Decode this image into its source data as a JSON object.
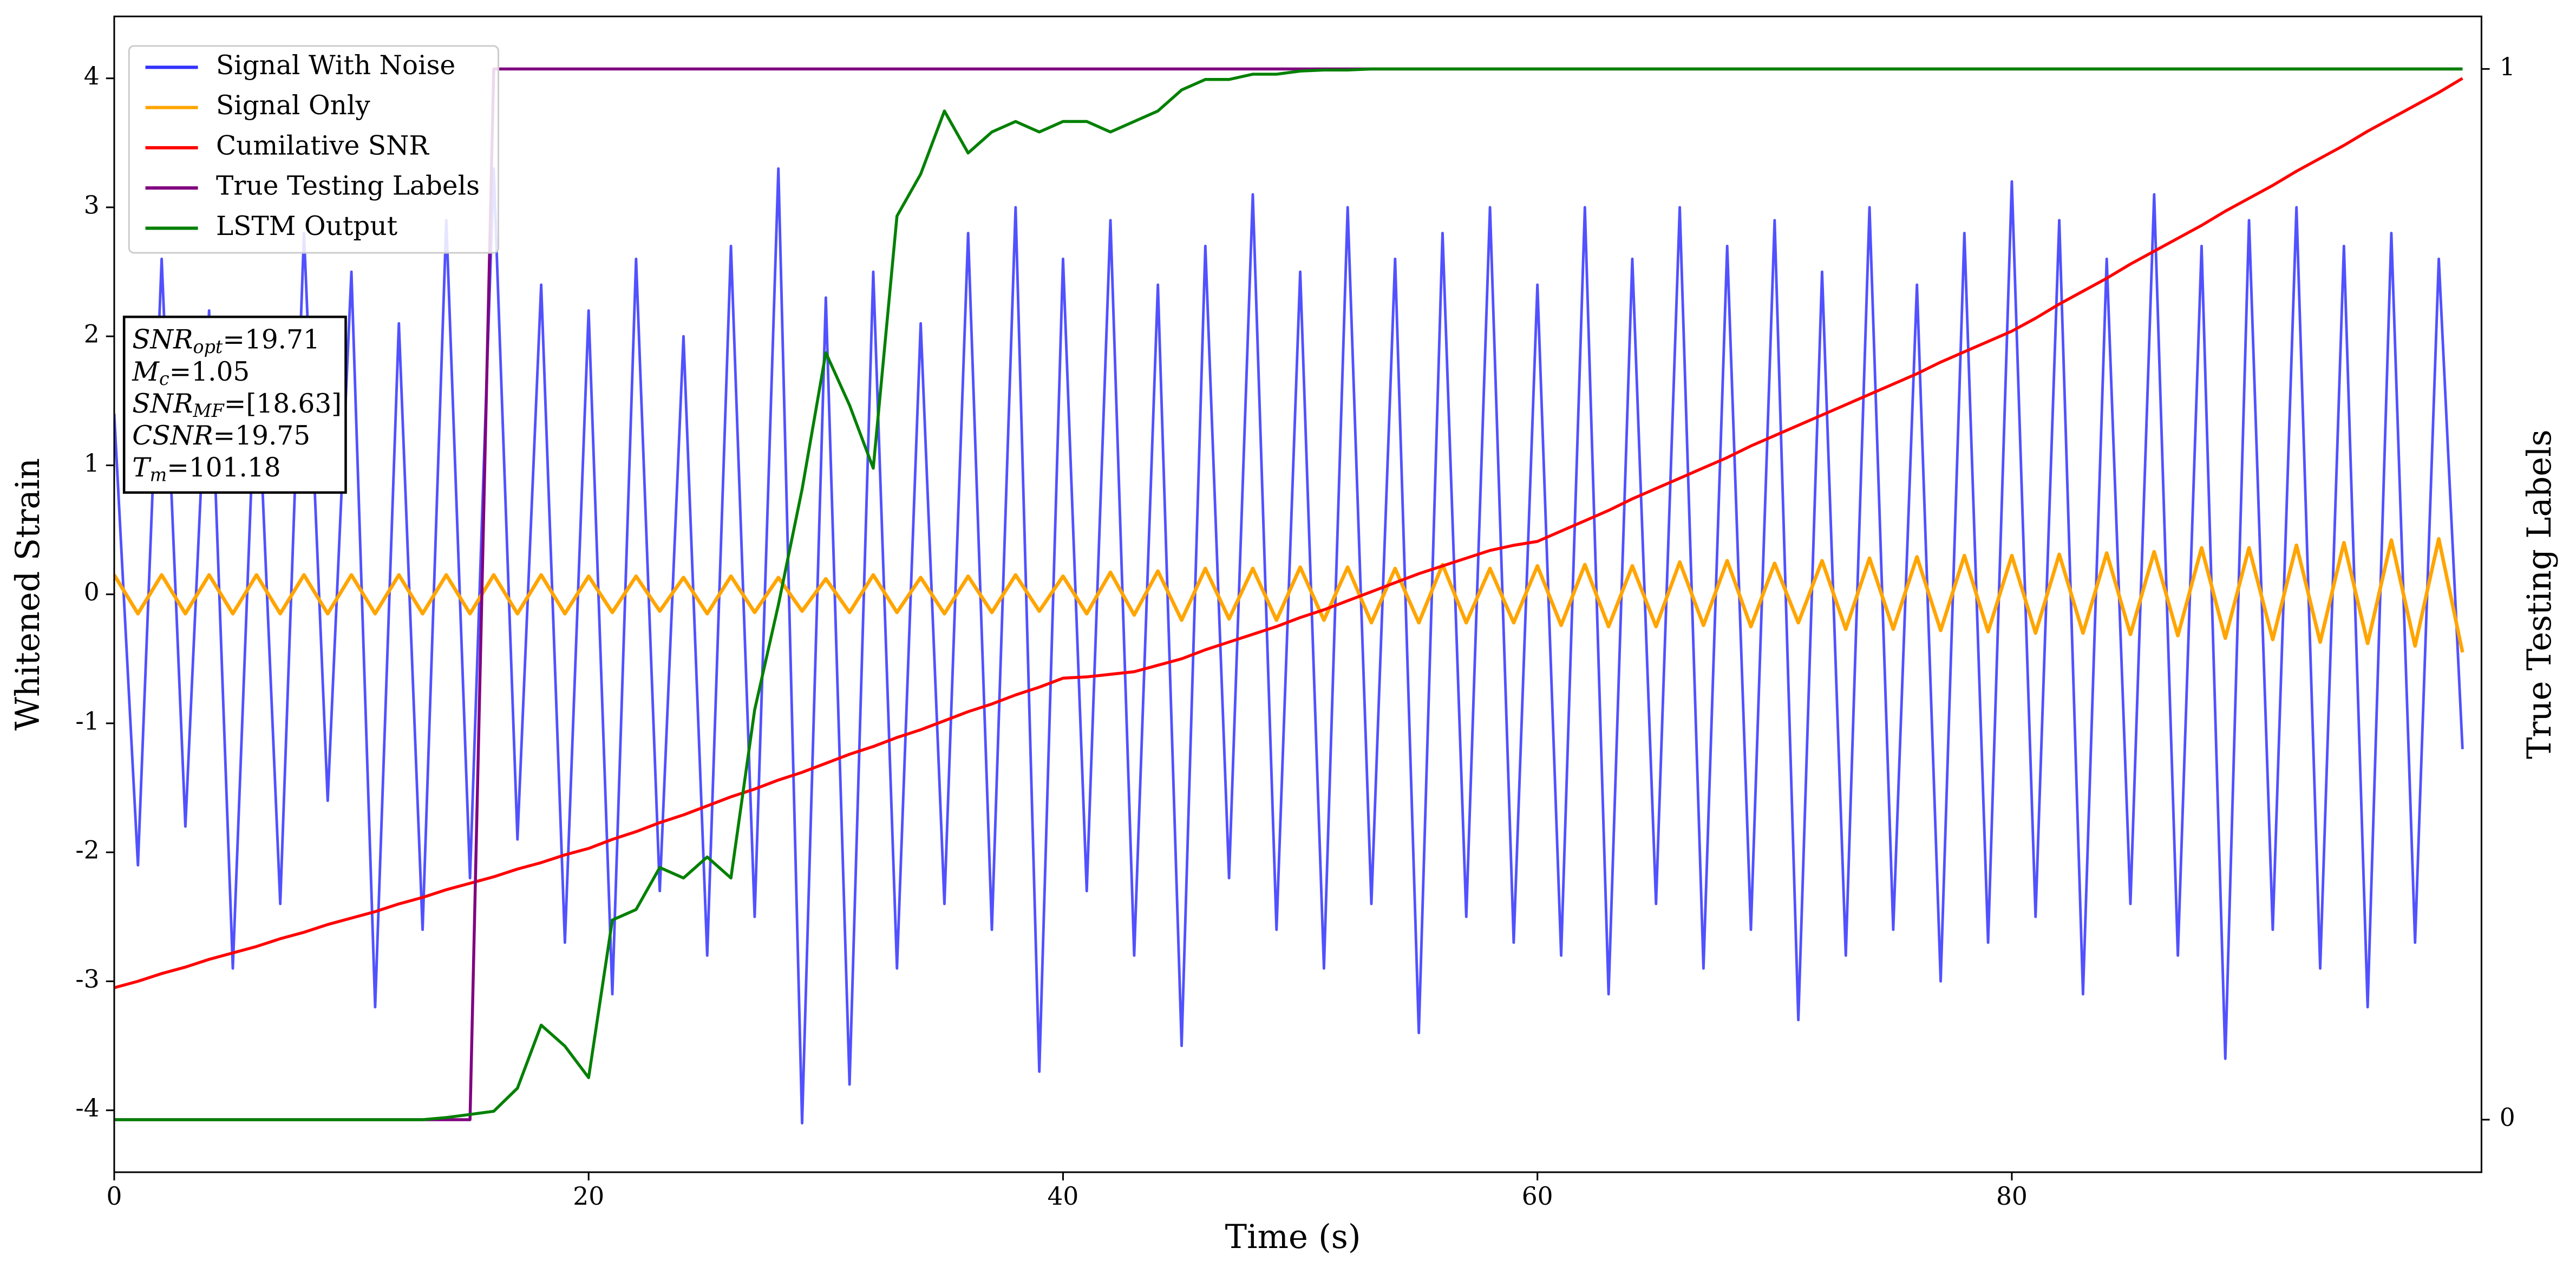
{
  "chart_data": {
    "type": "line",
    "xlabel": "Time (s)",
    "ylabel": "Whitened Strain",
    "y2label": "True Testing Labels",
    "xlim": [
      0,
      99.8
    ],
    "xticks": [
      0,
      20,
      40,
      60,
      80
    ],
    "ylim": [
      -4.48,
      4.48
    ],
    "yticks": [
      -4,
      -3,
      -2,
      -1,
      0,
      1,
      2,
      3,
      4
    ],
    "y2lim": [
      -0.05,
      1.05
    ],
    "y2ticks": [
      0,
      1
    ],
    "legend": "upper left",
    "x": [
      0,
      1,
      2,
      3,
      4,
      5,
      6,
      7,
      8,
      9,
      10,
      11,
      12,
      13,
      14,
      15,
      16,
      17,
      18,
      19,
      20,
      21,
      22,
      23,
      24,
      25,
      26,
      27,
      28,
      29,
      30,
      31,
      32,
      33,
      34,
      35,
      36,
      37,
      38,
      39,
      40,
      41,
      42,
      43,
      44,
      45,
      46,
      47,
      48,
      49,
      50,
      51,
      52,
      53,
      54,
      55,
      56,
      57,
      58,
      59,
      60,
      61,
      62,
      63,
      64,
      65,
      66,
      67,
      68,
      69,
      70,
      71,
      72,
      73,
      74,
      75,
      76,
      77,
      78,
      79,
      80,
      81,
      82,
      83,
      84,
      85,
      86,
      87,
      88,
      89,
      90,
      91,
      92,
      93,
      94,
      95,
      96,
      97,
      98,
      99
    ],
    "series": [
      {
        "name": "Signal With Noise",
        "color": "#3333ff",
        "values": [
          1.4,
          -2.1,
          2.6,
          -1.8,
          2.2,
          -2.9,
          1.9,
          -2.4,
          2.8,
          -1.6,
          2.5,
          -3.2,
          2.1,
          -2.6,
          2.9,
          -2.2,
          3.3,
          -1.9,
          2.4,
          -2.7,
          2.2,
          -3.1,
          2.6,
          -2.3,
          2.0,
          -2.8,
          2.7,
          -2.5,
          3.3,
          -4.1,
          2.3,
          -3.8,
          2.5,
          -2.9,
          2.1,
          -2.4,
          2.8,
          -2.6,
          3.0,
          -3.7,
          2.6,
          -2.3,
          2.9,
          -2.8,
          2.4,
          -3.5,
          2.7,
          -2.2,
          3.1,
          -2.6,
          2.5,
          -2.9,
          3.0,
          -2.4,
          2.6,
          -3.4,
          2.8,
          -2.5,
          3.0,
          -2.7,
          2.4,
          -2.8,
          3.0,
          -3.1,
          2.6,
          -2.4,
          3.0,
          -2.9,
          2.7,
          -2.6,
          2.9,
          -3.3,
          2.5,
          -2.8,
          3.0,
          -2.6,
          2.4,
          -3.0,
          2.8,
          -2.7,
          3.2,
          -2.5,
          2.9,
          -3.1,
          2.6,
          -2.4,
          3.1,
          -2.8,
          2.7,
          -3.6,
          2.9,
          -2.6,
          3.0,
          -2.9,
          2.7,
          -3.2,
          2.8,
          -2.7,
          2.6,
          -1.2
        ]
      },
      {
        "name": "Signal Only",
        "color": "#ffa500",
        "values": [
          0.15,
          -0.15,
          0.15,
          -0.15,
          0.15,
          -0.15,
          0.15,
          -0.15,
          0.15,
          -0.15,
          0.15,
          -0.15,
          0.15,
          -0.15,
          0.15,
          -0.15,
          0.15,
          -0.15,
          0.15,
          -0.15,
          0.14,
          -0.14,
          0.14,
          -0.13,
          0.13,
          -0.15,
          0.14,
          -0.14,
          0.13,
          -0.13,
          0.12,
          -0.14,
          0.15,
          -0.14,
          0.13,
          -0.15,
          0.14,
          -0.14,
          0.15,
          -0.13,
          0.14,
          -0.15,
          0.17,
          -0.16,
          0.18,
          -0.2,
          0.2,
          -0.19,
          0.2,
          -0.2,
          0.21,
          -0.2,
          0.21,
          -0.22,
          0.2,
          -0.22,
          0.23,
          -0.22,
          0.2,
          -0.22,
          0.22,
          -0.24,
          0.23,
          -0.25,
          0.22,
          -0.25,
          0.25,
          -0.24,
          0.26,
          -0.25,
          0.24,
          -0.22,
          0.26,
          -0.27,
          0.28,
          -0.27,
          0.29,
          -0.28,
          0.3,
          -0.29,
          0.3,
          -0.3,
          0.31,
          -0.3,
          0.32,
          -0.31,
          0.33,
          -0.32,
          0.36,
          -0.34,
          0.36,
          -0.35,
          0.38,
          -0.37,
          0.4,
          -0.38,
          0.42,
          -0.4,
          0.43,
          -0.45
        ]
      },
      {
        "name": "Cumilative SNR",
        "color": "#ff0000",
        "values": [
          -3.05,
          -3.0,
          -2.94,
          -2.89,
          -2.83,
          -2.78,
          -2.73,
          -2.67,
          -2.62,
          -2.56,
          -2.51,
          -2.46,
          -2.4,
          -2.35,
          -2.29,
          -2.24,
          -2.19,
          -2.13,
          -2.08,
          -2.02,
          -1.97,
          -1.9,
          -1.84,
          -1.77,
          -1.71,
          -1.64,
          -1.57,
          -1.51,
          -1.44,
          -1.38,
          -1.31,
          -1.24,
          -1.18,
          -1.11,
          -1.05,
          -0.98,
          -0.91,
          -0.85,
          -0.78,
          -0.72,
          -0.65,
          -0.64,
          -0.62,
          -0.6,
          -0.55,
          -0.5,
          -0.43,
          -0.37,
          -0.31,
          -0.25,
          -0.18,
          -0.12,
          -0.05,
          0.02,
          0.09,
          0.16,
          0.22,
          0.28,
          0.34,
          0.38,
          0.41,
          0.49,
          0.57,
          0.65,
          0.74,
          0.82,
          0.9,
          0.98,
          1.06,
          1.15,
          1.23,
          1.31,
          1.39,
          1.47,
          1.55,
          1.63,
          1.71,
          1.8,
          1.88,
          1.96,
          2.04,
          2.14,
          2.25,
          2.35,
          2.45,
          2.56,
          2.66,
          2.76,
          2.86,
          2.97,
          3.07,
          3.17,
          3.28,
          3.38,
          3.48,
          3.59,
          3.69,
          3.79,
          3.89,
          4.0
        ]
      },
      {
        "name": "True Testing Labels",
        "color": "#800080",
        "axis": "y2",
        "values": [
          0,
          0,
          0,
          0,
          0,
          0,
          0,
          0,
          0,
          0,
          0,
          0,
          0,
          0,
          0,
          0,
          1,
          1,
          1,
          1,
          1,
          1,
          1,
          1,
          1,
          1,
          1,
          1,
          1,
          1,
          1,
          1,
          1,
          1,
          1,
          1,
          1,
          1,
          1,
          1,
          1,
          1,
          1,
          1,
          1,
          1,
          1,
          1,
          1,
          1,
          1,
          1,
          1,
          1,
          1,
          1,
          1,
          1,
          1,
          1,
          1,
          1,
          1,
          1,
          1,
          1,
          1,
          1,
          1,
          1,
          1,
          1,
          1,
          1,
          1,
          1,
          1,
          1,
          1,
          1,
          1,
          1,
          1,
          1,
          1,
          1,
          1,
          1,
          1,
          1,
          1,
          1,
          1,
          1,
          1,
          1,
          1,
          1,
          1,
          1
        ]
      },
      {
        "name": "LSTM Output",
        "color": "#008000",
        "axis": "y2",
        "values": [
          0,
          0,
          0,
          0,
          0,
          0,
          0,
          0,
          0,
          0,
          0,
          0,
          0,
          0,
          0.002,
          0.005,
          0.008,
          0.03,
          0.09,
          0.07,
          0.04,
          0.19,
          0.2,
          0.24,
          0.23,
          0.25,
          0.23,
          0.39,
          0.49,
          0.6,
          0.73,
          0.68,
          0.62,
          0.86,
          0.9,
          0.96,
          0.92,
          0.94,
          0.95,
          0.94,
          0.95,
          0.95,
          0.94,
          0.95,
          0.96,
          0.98,
          0.99,
          0.99,
          0.995,
          0.995,
          0.998,
          0.999,
          0.999,
          1,
          1,
          1,
          1,
          1,
          1,
          1,
          1,
          1,
          1,
          1,
          1,
          1,
          1,
          1,
          1,
          1,
          1,
          1,
          1,
          1,
          1,
          1,
          1,
          1,
          1,
          1,
          1,
          1,
          1,
          1,
          1,
          1,
          1,
          1,
          1,
          1,
          1,
          1,
          1,
          1,
          1,
          1,
          1,
          1,
          1,
          1
        ]
      }
    ],
    "annotations": [
      {
        "main": "SNR",
        "sub": "opt",
        "rest": "=19.71"
      },
      {
        "main": "M",
        "sub": "c",
        "rest": "=1.05"
      },
      {
        "main": "SNR",
        "sub": "MF",
        "rest": "=[18.63]"
      },
      {
        "main": "CSNR",
        "rest": "=19.75"
      },
      {
        "main": "T",
        "sub": "m",
        "rest": "=101.18"
      }
    ]
  }
}
